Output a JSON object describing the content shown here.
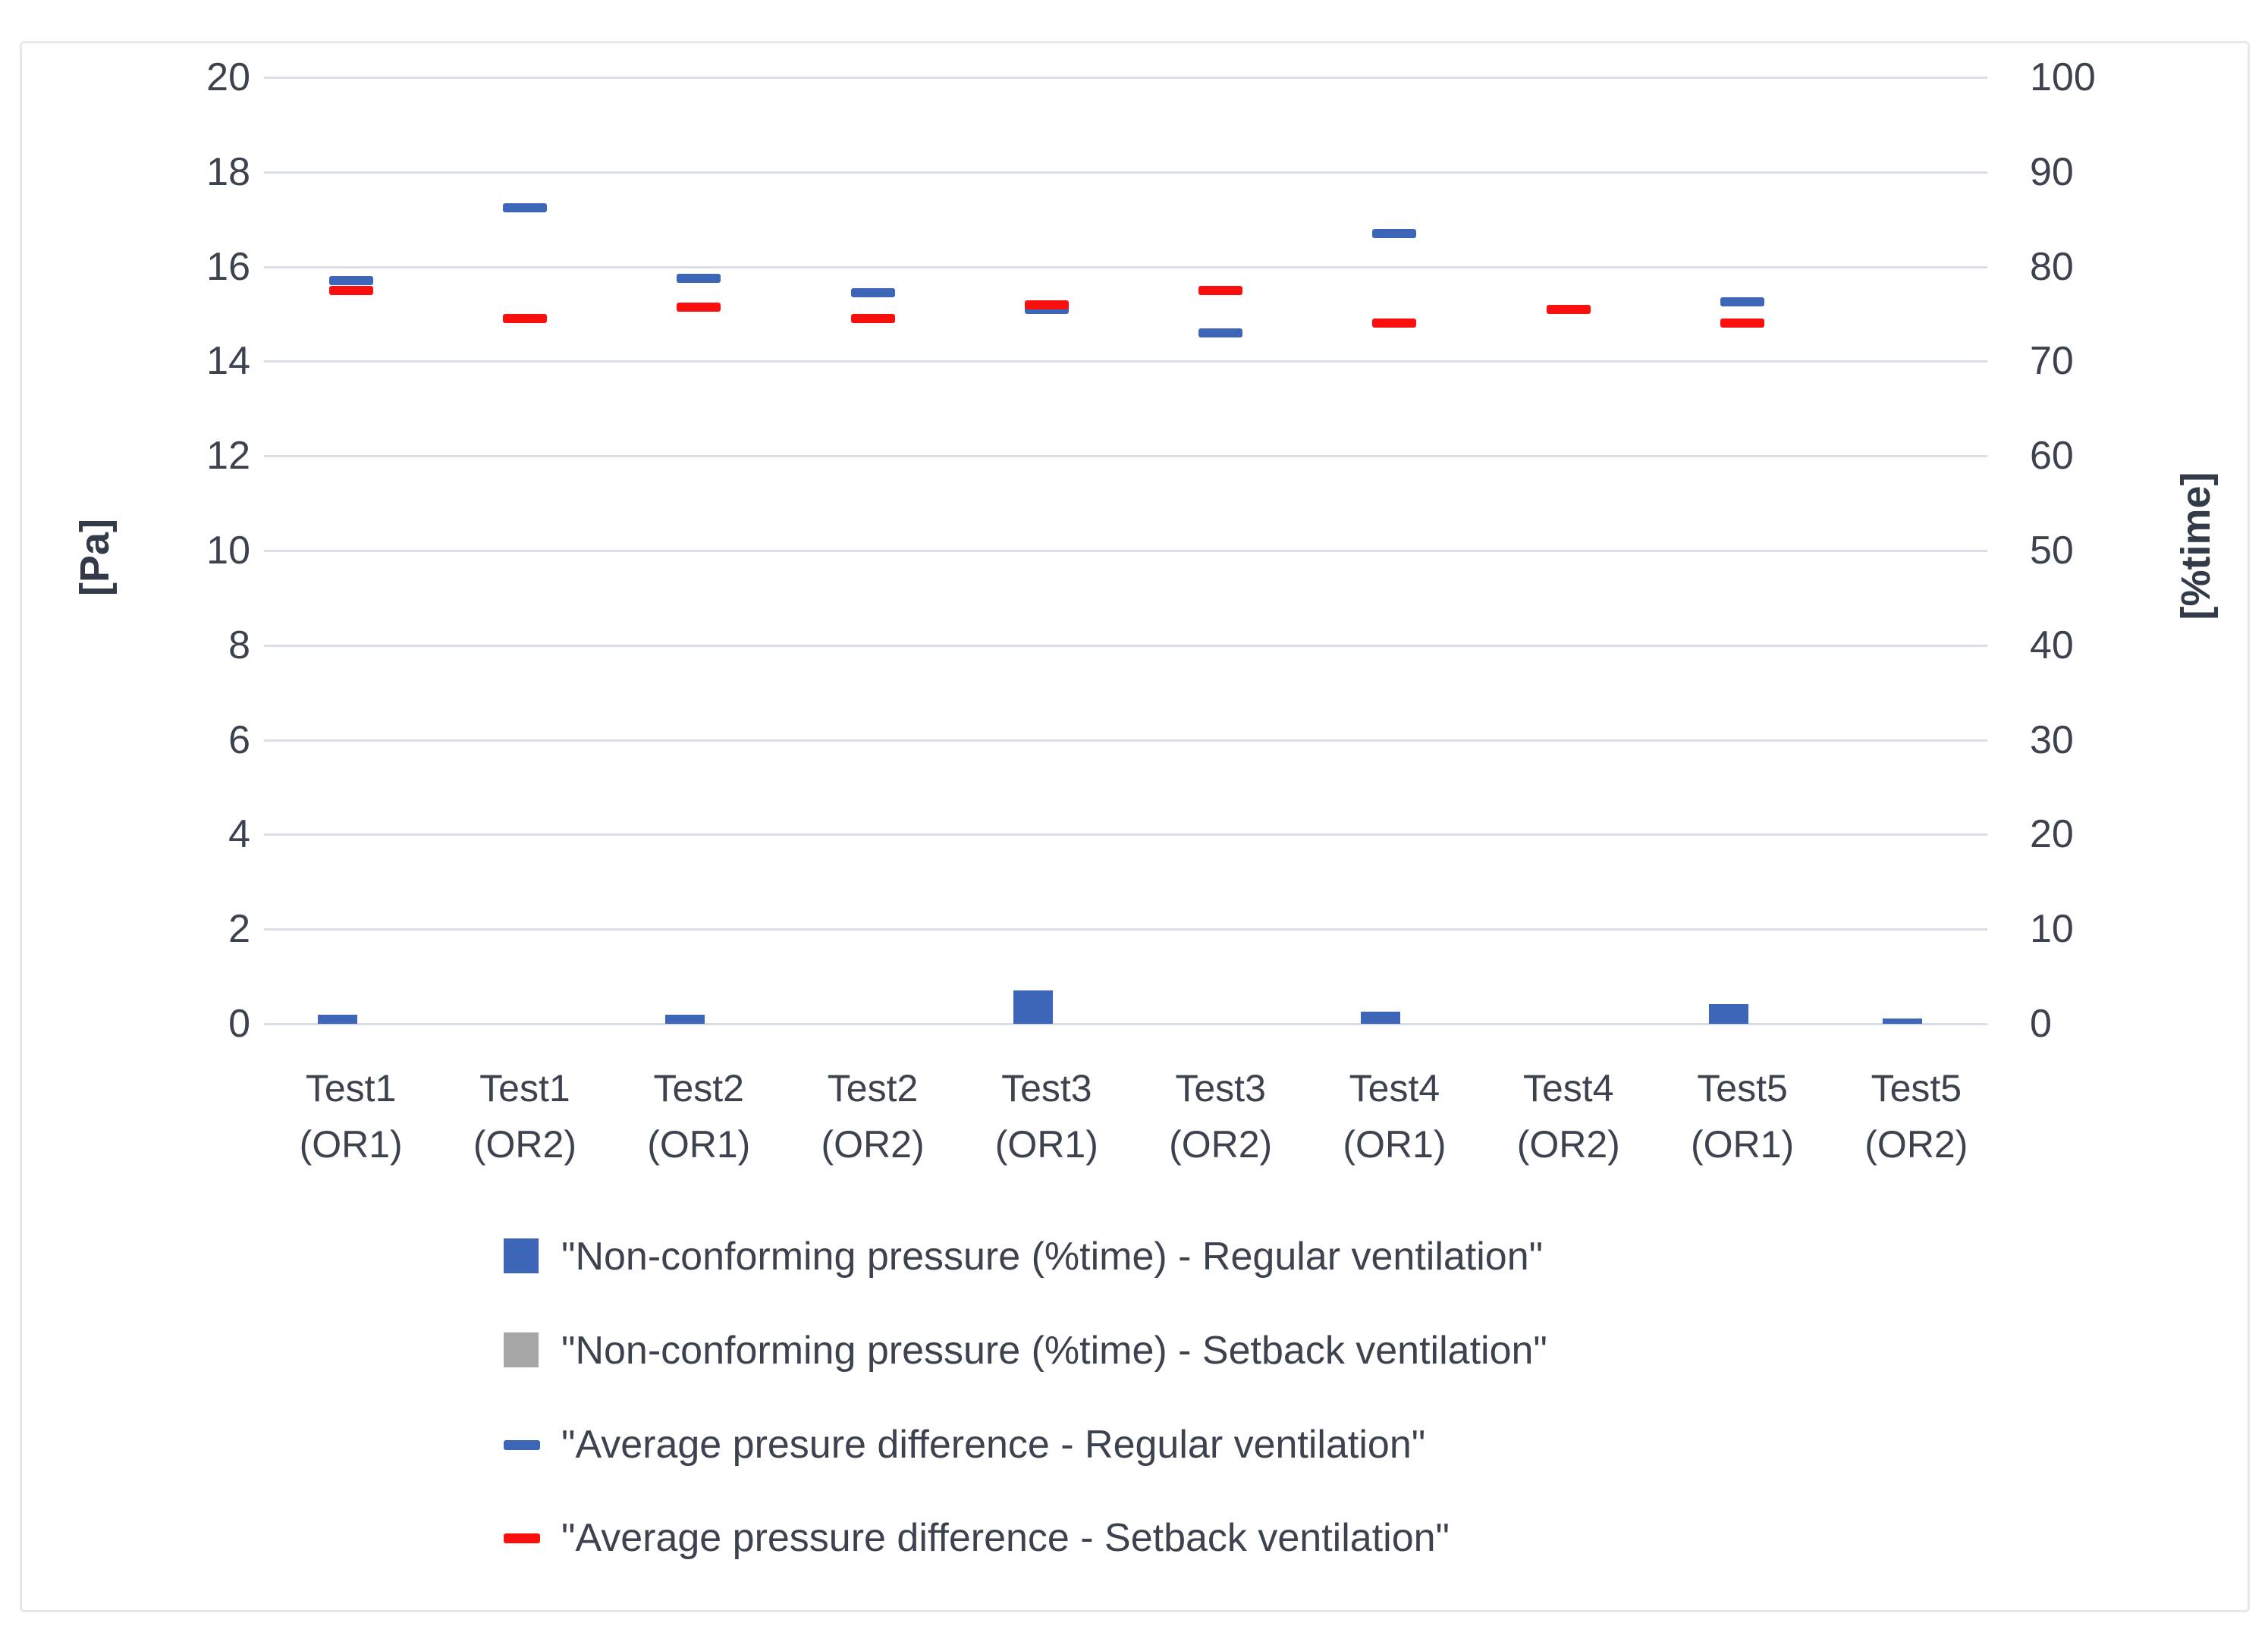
{
  "chart_data": {
    "type": "bar",
    "subtype": "combo-bar-with-dash-markers",
    "title": "",
    "categories": [
      "Test1 (OR1)",
      "Test1 (OR2)",
      "Test2 (OR1)",
      "Test2 (OR2)",
      "Test3 (OR1)",
      "Test3 (OR2)",
      "Test4 (OR1)",
      "Test4 (OR2)",
      "Test5 (OR1)",
      "Test5 (OR2)"
    ],
    "category_label_lines": [
      [
        "Test1",
        "(OR1)"
      ],
      [
        "Test1",
        "(OR2)"
      ],
      [
        "Test2",
        "(OR1)"
      ],
      [
        "Test2",
        "(OR2)"
      ],
      [
        "Test3",
        "(OR1)"
      ],
      [
        "Test3",
        "(OR2)"
      ],
      [
        "Test4",
        "(OR1)"
      ],
      [
        "Test4",
        "(OR2)"
      ],
      [
        "Test5",
        "(OR1)"
      ],
      [
        "Test5",
        "(OR2)"
      ]
    ],
    "left_axis": {
      "title": "[Pa]",
      "min": 0,
      "max": 20,
      "step": 2,
      "tick_labels": [
        "20",
        "18",
        "16",
        "14",
        "12",
        "10",
        "8",
        "6",
        "4",
        "2",
        "0"
      ]
    },
    "right_axis": {
      "title": "[%time]",
      "min": 0,
      "max": 100,
      "step": 10,
      "tick_labels": [
        "100",
        "90",
        "80",
        "70",
        "60",
        "50",
        "40",
        "30",
        "20",
        "10",
        "0"
      ]
    },
    "grid": true,
    "legend_position": "bottom",
    "series": [
      {
        "name": "\"Non-conforming pressure (%time) - Regular ventilation\"",
        "type": "bar",
        "axis": "right",
        "unit": "%time",
        "color": "#3e66b8",
        "values": [
          1.0,
          null,
          1.0,
          null,
          3.5,
          null,
          1.3,
          null,
          2.1,
          0.6
        ]
      },
      {
        "name": "\"Non-conforming pressure (%time) - Setback ventilation\"",
        "type": "bar",
        "axis": "right",
        "unit": "%time",
        "color": "#a6a6a6",
        "values": [
          null,
          null,
          null,
          null,
          null,
          null,
          null,
          null,
          null,
          null
        ]
      },
      {
        "name": "\"Average presure difference - Regular ventilation\"",
        "type": "dash",
        "axis": "left",
        "unit": "Pa",
        "color": "#3e66b8",
        "values": [
          15.7,
          17.25,
          15.75,
          15.45,
          15.1,
          14.6,
          16.7,
          null,
          15.25,
          null
        ]
      },
      {
        "name": "\"Average pressure difference - Setback ventilation\"",
        "type": "dash",
        "axis": "left",
        "unit": "Pa",
        "color": "#fa0f0f",
        "values": [
          15.5,
          14.9,
          15.15,
          14.9,
          15.2,
          15.5,
          14.8,
          15.1,
          14.8,
          null
        ]
      }
    ]
  }
}
